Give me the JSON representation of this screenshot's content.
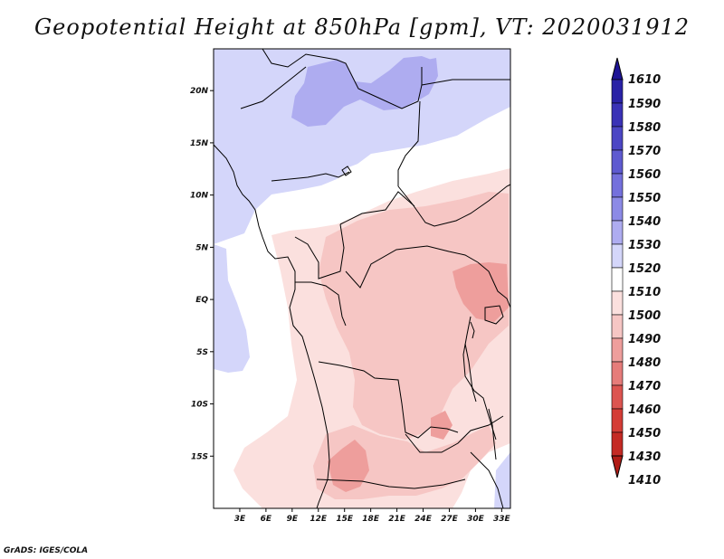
{
  "title": "Geopotential Height at 850hPa [gpm], VT: 2020031912",
  "credit": "GrADS: IGES/COLA",
  "chart_data": {
    "type": "heatmap",
    "title": "Geopotential Height at 850hPa [gpm], VT: 2020031912",
    "variable": "Geopotential Height at 850hPa",
    "units": "gpm",
    "valid_time": "2020031912",
    "lon_range": [
      0,
      34
    ],
    "lat_range": [
      -20,
      24
    ],
    "x_ticks": [
      {
        "value": 3,
        "label": "3E"
      },
      {
        "value": 6,
        "label": "6E"
      },
      {
        "value": 9,
        "label": "9E"
      },
      {
        "value": 12,
        "label": "12E"
      },
      {
        "value": 15,
        "label": "15E"
      },
      {
        "value": 18,
        "label": "18E"
      },
      {
        "value": 21,
        "label": "21E"
      },
      {
        "value": 24,
        "label": "24E"
      },
      {
        "value": 27,
        "label": "27E"
      },
      {
        "value": 30,
        "label": "30E"
      },
      {
        "value": 33,
        "label": "33E"
      }
    ],
    "y_ticks": [
      {
        "value": 20,
        "label": "20N"
      },
      {
        "value": 15,
        "label": "15N"
      },
      {
        "value": 10,
        "label": "10N"
      },
      {
        "value": 5,
        "label": "5N"
      },
      {
        "value": 0,
        "label": "EQ"
      },
      {
        "value": -5,
        "label": "5S"
      },
      {
        "value": -10,
        "label": "10S"
      },
      {
        "value": -15,
        "label": "15S"
      }
    ],
    "colorbar": [
      {
        "label": "1610",
        "color": "#1e1496"
      },
      {
        "label": "1590",
        "color": "#2a22a6"
      },
      {
        "label": "1580",
        "color": "#3a32b6"
      },
      {
        "label": "1570",
        "color": "#4c46c4"
      },
      {
        "label": "1560",
        "color": "#5e5ad0"
      },
      {
        "label": "1550",
        "color": "#7470dc"
      },
      {
        "label": "1540",
        "color": "#8c8ae6"
      },
      {
        "label": "1530",
        "color": "#aeacf0"
      },
      {
        "label": "1520",
        "color": "#d4d6fa"
      },
      {
        "label": "1510",
        "color": "#ffffff"
      },
      {
        "label": "1500",
        "color": "#fbe0de"
      },
      {
        "label": "1490",
        "color": "#f6c6c4"
      },
      {
        "label": "1480",
        "color": "#ee9e9c"
      },
      {
        "label": "1470",
        "color": "#e67c7a"
      },
      {
        "label": "1460",
        "color": "#dc5450"
      },
      {
        "label": "1450",
        "color": "#d43c36"
      },
      {
        "label": "1430",
        "color": "#c42a24"
      },
      {
        "label": "1410",
        "color": "#b01c16"
      }
    ]
  }
}
